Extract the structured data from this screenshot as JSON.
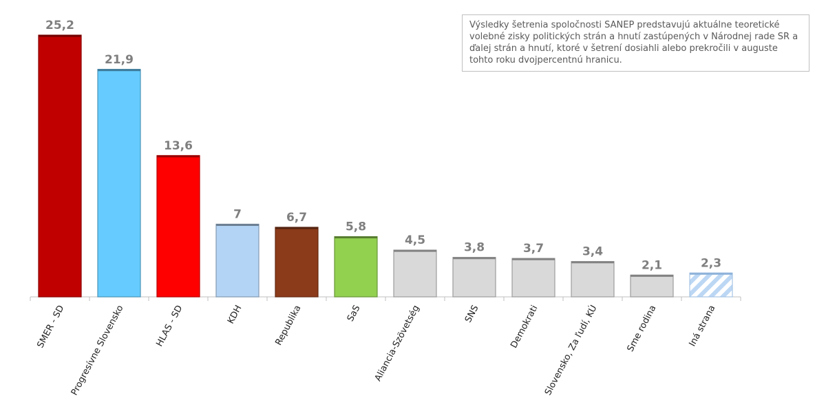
{
  "note": "Výsledky šetrenia spoločnosti SANEP predstavujú aktuálne teoretické volebné zisky politických strán a hnutí zastúpených v Národnej rade SR a ďalej strán a hnutí, ktoré v šetrení dosiahli alebo prekročili v auguste tohto roku dvojpercentnú hranicu.",
  "chart_data": {
    "type": "bar",
    "categories": [
      "SMER - SD",
      "Progresívne Slovensko",
      "HLAS - SD",
      "KDH",
      "Republika",
      "SaS",
      "Aliancia-Szövetség",
      "SNS",
      "Demokrati",
      "Slovensko, Za ľudí, KÚ",
      "Sme rodina",
      "Iná strana"
    ],
    "values": [
      25.2,
      21.9,
      13.6,
      7,
      6.7,
      5.8,
      4.5,
      3.8,
      3.7,
      3.4,
      2.1,
      2.3
    ],
    "value_labels": [
      "25,2",
      "21,9",
      "13,6",
      "7",
      "6,7",
      "5,8",
      "4,5",
      "3,8",
      "3,7",
      "3,4",
      "2,1",
      "2,3"
    ],
    "colors": [
      "#c00000",
      "#66ccff",
      "#ff0000",
      "#b4d4f5",
      "#8b3a1a",
      "#92d050",
      "#d9d9d9",
      "#d9d9d9",
      "#d9d9d9",
      "#d9d9d9",
      "#d9d9d9",
      "#d0e4f7"
    ],
    "hatched": [
      false,
      false,
      false,
      false,
      false,
      false,
      false,
      false,
      false,
      false,
      false,
      true
    ],
    "ylim": [
      0,
      27
    ],
    "grid": false,
    "legend": "none"
  }
}
